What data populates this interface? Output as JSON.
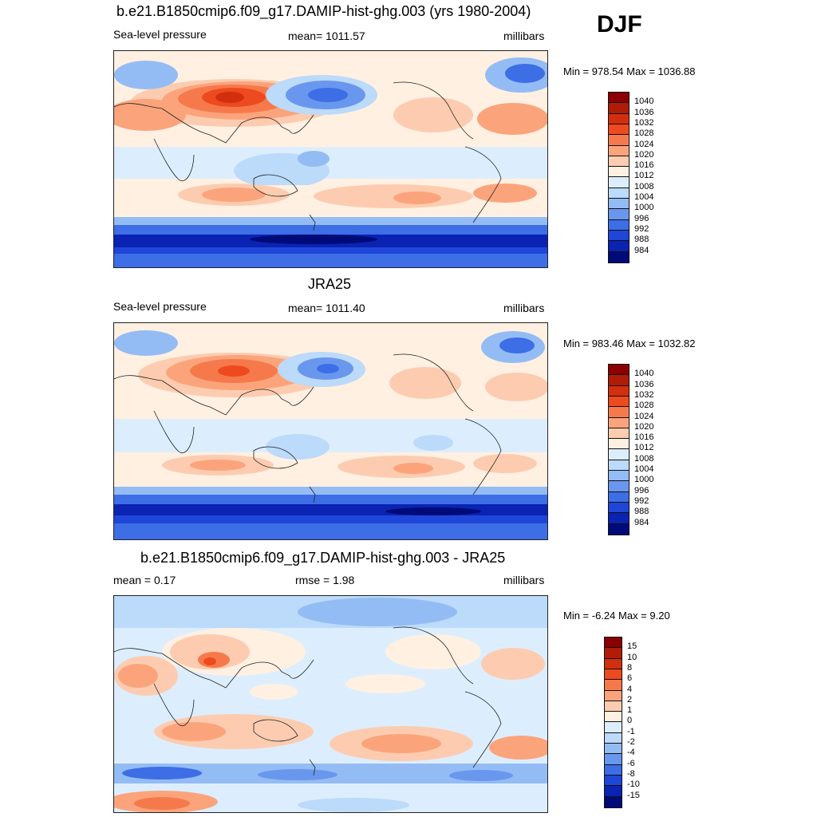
{
  "season": "DJF",
  "panels": [
    {
      "title": "b.e21.B1850cmip6.f09_g17.DAMIP-hist-ghg.003 (yrs 1980-2004)",
      "left": "Sea-level pressure",
      "center": "mean= 1011.57",
      "right": "millibars",
      "minmax": "Min = 978.54 Max = 1036.88",
      "type": "abs"
    },
    {
      "title": "JRA25",
      "left": "Sea-level pressure",
      "center": "mean= 1011.40",
      "right": "millibars",
      "minmax": "Min = 983.46 Max = 1032.82",
      "type": "abs"
    },
    {
      "title": "b.e21.B1850cmip6.f09_g17.DAMIP-hist-ghg.003 - JRA25",
      "left": "mean =   0.17",
      "center": "rmse =   1.98",
      "right": "millibars",
      "minmax": "Min =  -6.24 Max =   9.20",
      "type": "diff"
    }
  ],
  "colorbar_abs": {
    "labels": [
      "1040",
      "1036",
      "1032",
      "1028",
      "1024",
      "1020",
      "1016",
      "1012",
      "1008",
      "1004",
      "1000",
      "996",
      "992",
      "988",
      "984"
    ],
    "colors": [
      "#8b0000",
      "#b01c06",
      "#d22f0e",
      "#ee4a1f",
      "#f6794c",
      "#fba47c",
      "#fdccb0",
      "#fff0e2",
      "#dceefd",
      "#bcdaf9",
      "#94bcf4",
      "#6a97ee",
      "#3d6ee6",
      "#1f46d8",
      "#0a23b2",
      "#000a78"
    ]
  },
  "colorbar_diff": {
    "labels": [
      "15",
      "10",
      "8",
      "6",
      "4",
      "2",
      "1",
      "0",
      "-1",
      "-2",
      "-4",
      "-6",
      "-8",
      "-10",
      "-15"
    ],
    "colors": [
      "#8b0000",
      "#b01c06",
      "#d22f0e",
      "#ee4a1f",
      "#f6794c",
      "#fba47c",
      "#fdccb0",
      "#fff0e2",
      "#dceefd",
      "#bcdaf9",
      "#94bcf4",
      "#6a97ee",
      "#3d6ee6",
      "#1f46d8",
      "#0a23b2",
      "#000a78"
    ]
  }
}
